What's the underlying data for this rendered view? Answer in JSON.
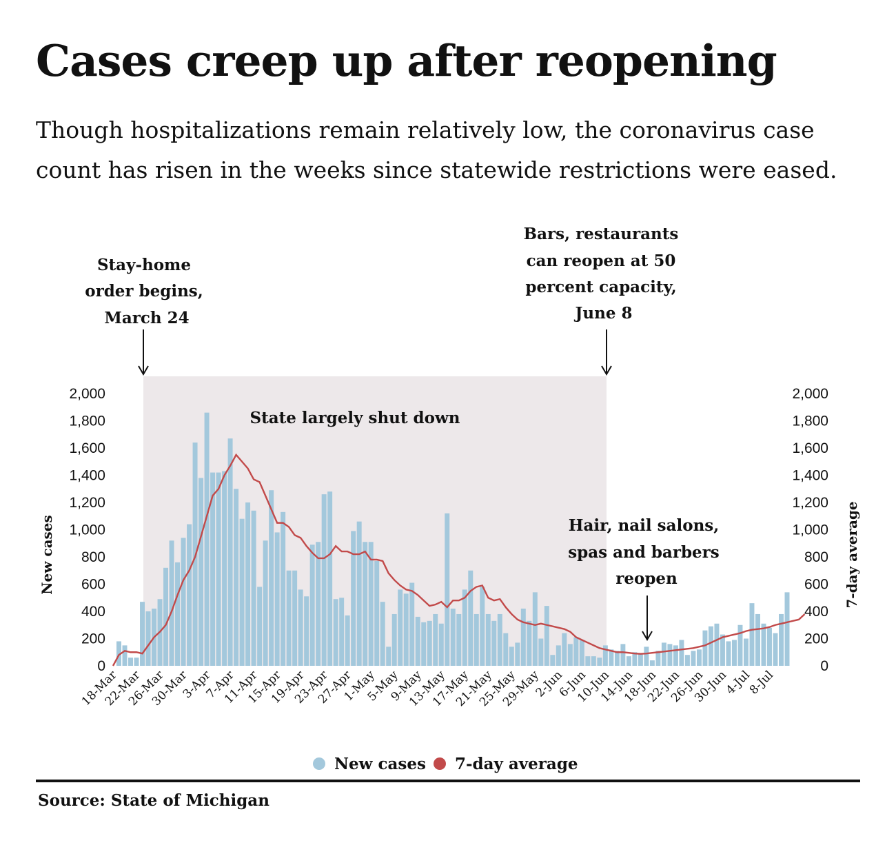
{
  "title": "Cases creep up after reopening",
  "subtitle": "Though hospitalizations remain relatively low, the coronavirus case count has risen in the weeks since statewide restrictions were eased.",
  "source": "Source: State of Michigan",
  "colors": {
    "bar": "#a3c8dc",
    "line": "#c24a4a",
    "shade": "#ede8ea",
    "text": "#111111"
  },
  "annotations": {
    "stay_home": [
      "Stay-home",
      "order begins,",
      "March 24"
    ],
    "bars_reopen": [
      "Bars, restaurants",
      "can reopen at 50",
      "percent capacity,",
      "June 8"
    ],
    "shutdown": "State largely shut down",
    "salons": [
      "Hair, nail salons,",
      "spas and barbers",
      "reopen"
    ]
  },
  "legend": {
    "new_cases": "New cases",
    "avg": "7-day average"
  },
  "chart_data": {
    "type": "bar",
    "start_date": "18-Mar",
    "end_date": "8-Jul",
    "x_tick_labels": [
      "18-Mar",
      "22-Mar",
      "26-Mar",
      "30-Mar",
      "3-Apr",
      "7-Apr",
      "11-Apr",
      "15-Apr",
      "19-Apr",
      "23-Apr",
      "27-Apr",
      "1-May",
      "5-May",
      "9-May",
      "13-May",
      "17-May",
      "21-May",
      "25-May",
      "29-May",
      "2-Jun",
      "6-Jun",
      "10-Jun",
      "14-Jun",
      "18-Jun",
      "22-Jun",
      "26-Jun",
      "30-Jun",
      "4-Jul",
      "8-Jul"
    ],
    "ylabel_left": "New cases",
    "ylabel_right": "7-day average",
    "ylim": [
      0,
      2000
    ],
    "y_ticks": [
      "0",
      "200",
      "400",
      "600",
      "800",
      "1,000",
      "1,200",
      "1,400",
      "1,600",
      "1,800",
      "2,000"
    ],
    "shaded_range": [
      "24-Mar",
      "8-Jun"
    ],
    "series": [
      {
        "name": "New cases",
        "type": "bar",
        "values": [
          0,
          180,
          150,
          60,
          60,
          470,
          400,
          420,
          490,
          720,
          920,
          760,
          940,
          1040,
          1640,
          1380,
          1860,
          1420,
          1420,
          1430,
          1670,
          1300,
          1080,
          1200,
          1140,
          580,
          920,
          1290,
          980,
          1130,
          700,
          700,
          560,
          510,
          890,
          910,
          1260,
          1280,
          490,
          500,
          370,
          990,
          1060,
          910,
          910,
          770,
          470,
          140,
          380,
          560,
          530,
          610,
          360,
          320,
          330,
          380,
          310,
          1120,
          420,
          380,
          560,
          700,
          380,
          580,
          380,
          330,
          380,
          240,
          140,
          170,
          420,
          330,
          540,
          200,
          440,
          80,
          150,
          240,
          160,
          210,
          190,
          70,
          70,
          60,
          150,
          120,
          110,
          160,
          70,
          100,
          90,
          140,
          40,
          110,
          170,
          160,
          150,
          190,
          80,
          110,
          120,
          260,
          290,
          310,
          230,
          180,
          190,
          300,
          200,
          460,
          380,
          310,
          280,
          240,
          380,
          540
        ]
      },
      {
        "name": "7-day average",
        "type": "line",
        "values": [
          0,
          80,
          110,
          100,
          100,
          90,
          150,
          210,
          250,
          300,
          400,
          520,
          630,
          700,
          800,
          950,
          1100,
          1250,
          1300,
          1400,
          1470,
          1550,
          1500,
          1450,
          1370,
          1350,
          1250,
          1150,
          1050,
          1050,
          1020,
          960,
          940,
          880,
          830,
          790,
          790,
          820,
          880,
          840,
          840,
          820,
          820,
          840,
          780,
          780,
          770,
          680,
          630,
          590,
          560,
          550,
          520,
          480,
          440,
          450,
          470,
          430,
          480,
          480,
          500,
          550,
          580,
          590,
          500,
          480,
          490,
          430,
          380,
          340,
          320,
          310,
          300,
          310,
          300,
          290,
          280,
          270,
          250,
          210,
          190,
          170,
          150,
          130,
          120,
          110,
          100,
          100,
          95,
          90,
          88,
          90,
          95,
          100,
          105,
          110,
          115,
          120,
          125,
          130,
          140,
          150,
          170,
          190,
          210,
          220,
          230,
          240,
          255,
          265,
          270,
          275,
          285,
          300,
          310,
          320,
          330,
          340,
          380
        ]
      }
    ]
  }
}
